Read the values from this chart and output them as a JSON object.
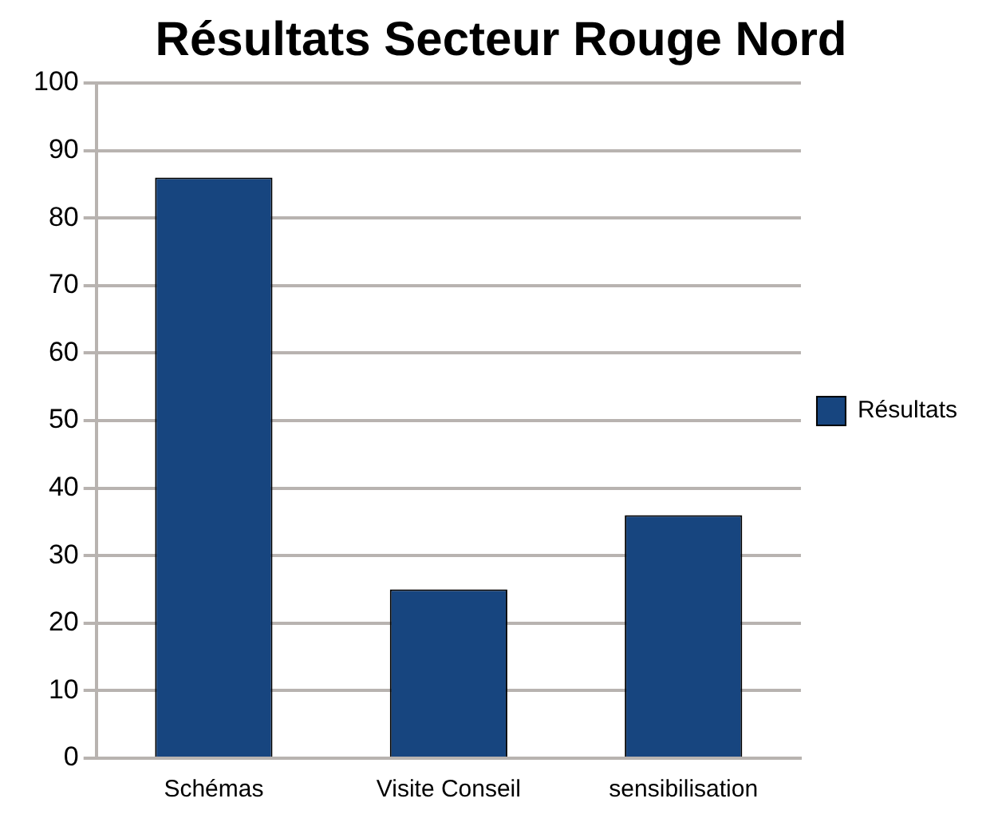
{
  "chart_data": {
    "type": "bar",
    "title": "Résultats Secteur Rouge Nord",
    "categories": [
      "Schémas",
      "Visite Conseil",
      "sensibilisation"
    ],
    "series": [
      {
        "name": "Résultats",
        "color": "#17457f",
        "values": [
          86,
          25,
          36
        ]
      }
    ],
    "ylim": [
      0,
      100
    ],
    "yticks": [
      0,
      10,
      20,
      30,
      40,
      50,
      60,
      70,
      80,
      90,
      100
    ],
    "grid": "y",
    "legend": "right"
  }
}
